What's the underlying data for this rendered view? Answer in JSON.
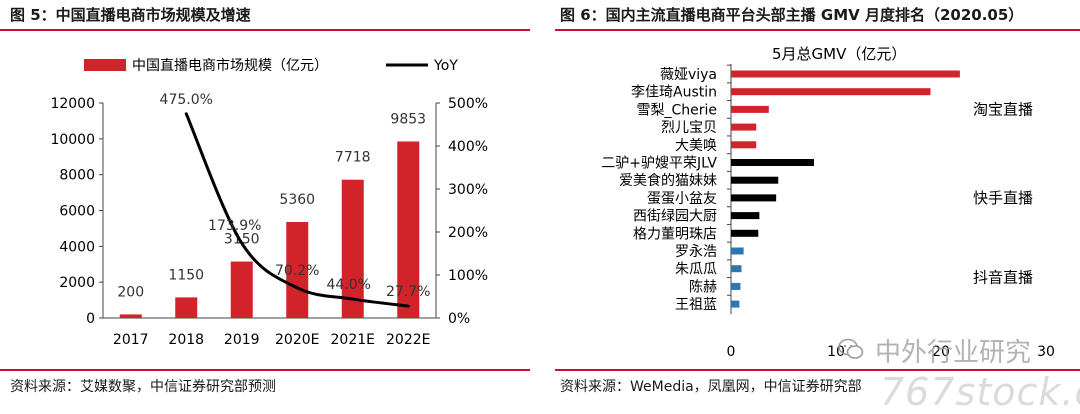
{
  "left_panel": {
    "title": "图 5：中国直播电商市场规模及增速",
    "source": "资料来源：艾媒数聚，中信证券研究部预测"
  },
  "right_panel": {
    "title": "图 6：国内主流直播电商平台头部主播 GMV 月度排名（2020.05）",
    "source": "资料来源：WeMedia，凤凰网，中信证券研究部"
  },
  "watermark": {
    "text": "中外行业研究",
    "url": "767stock.c"
  },
  "colors": {
    "red": "#d2232a",
    "black": "#000000",
    "blue": "#2e75b6",
    "rule": "#c8102e"
  },
  "chart_data": [
    {
      "type": "bar",
      "categories": [
        "2017",
        "2018",
        "2019",
        "2020E",
        "2021E",
        "2022E"
      ],
      "series": [
        {
          "name": "中国直播电商市场规模（亿元）",
          "axis": "left",
          "type": "bar",
          "color": "#d2232a",
          "values": [
            200,
            1150,
            3150,
            5360,
            7718,
            9853
          ],
          "labels": [
            "200",
            "1150",
            "3150",
            "5360",
            "7718",
            "9853"
          ]
        },
        {
          "name": "YoY",
          "axis": "right",
          "type": "line",
          "color": "#000000",
          "values": [
            null,
            475.0,
            173.9,
            70.2,
            44.0,
            27.7
          ],
          "labels": [
            "",
            "475.0%",
            "173.9%",
            "70.2%",
            "44.0%",
            "27.7%"
          ]
        }
      ],
      "y_left": {
        "min": 0,
        "max": 12000,
        "ticks": [
          0,
          2000,
          4000,
          6000,
          8000,
          10000,
          12000
        ],
        "tick_labels": [
          "0",
          "2000",
          "4000",
          "6000",
          "8000",
          "10000",
          "12000"
        ]
      },
      "y_right": {
        "min": 0,
        "max": 500,
        "ticks": [
          0,
          100,
          200,
          300,
          400,
          500
        ],
        "tick_labels": [
          "0%",
          "100%",
          "200%",
          "300%",
          "400%",
          "500%"
        ]
      },
      "legend": "top"
    },
    {
      "type": "bar",
      "orientation": "horizontal",
      "title": "5月总GMV（亿元）",
      "categories": [
        "薇娅viya",
        "李佳琦Austin",
        "雪梨_Cherie",
        "烈儿宝贝",
        "大美唤",
        "二驴+驴嫂平荣JLV",
        "爱美食的猫妹妹",
        "蛋蛋小盆友",
        "西街绿园大厨",
        "格力董明珠店",
        "罗永浩",
        "朱瓜瓜",
        "陈赫",
        "王祖蓝"
      ],
      "values": [
        21.8,
        19.0,
        3.6,
        2.4,
        2.4,
        7.9,
        4.5,
        4.3,
        2.7,
        2.6,
        1.2,
        1.0,
        0.9,
        0.8
      ],
      "colors": [
        "#d2232a",
        "#d2232a",
        "#d2232a",
        "#d2232a",
        "#d2232a",
        "#000000",
        "#000000",
        "#000000",
        "#000000",
        "#000000",
        "#2e75b6",
        "#2e75b6",
        "#2e75b6",
        "#2e75b6"
      ],
      "groups": [
        {
          "label": "淘宝直播",
          "start": 0,
          "end": 4
        },
        {
          "label": "快手直播",
          "start": 5,
          "end": 9
        },
        {
          "label": "抖音直播",
          "start": 10,
          "end": 13
        }
      ],
      "x_axis": {
        "min": 0,
        "max": 30,
        "ticks": [
          0,
          10,
          20,
          30
        ],
        "tick_labels": [
          "0",
          "10",
          "20",
          "30"
        ]
      }
    }
  ]
}
